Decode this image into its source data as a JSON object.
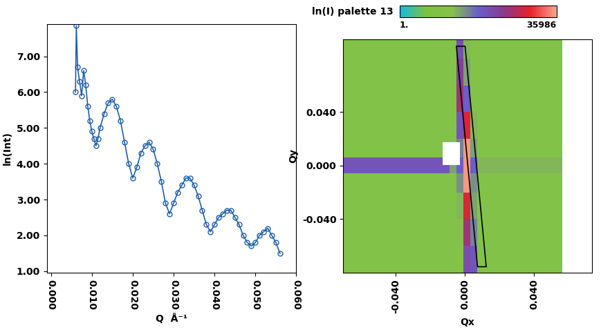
{
  "chart_data": [
    {
      "type": "scatter",
      "xlabel": "Q  Å⁻¹",
      "ylabel": "ln(Int)",
      "marker": "o",
      "line_style": "solid",
      "color": "#1f5fa8",
      "x": [
        0.006,
        0.0062,
        0.0065,
        0.007,
        0.0075,
        0.008,
        0.0085,
        0.009,
        0.0095,
        0.01,
        0.0105,
        0.011,
        0.0115,
        0.012,
        0.013,
        0.014,
        0.015,
        0.016,
        0.017,
        0.018,
        0.019,
        0.02,
        0.021,
        0.022,
        0.023,
        0.024,
        0.025,
        0.026,
        0.027,
        0.028,
        0.029,
        0.03,
        0.031,
        0.032,
        0.033,
        0.034,
        0.035,
        0.036,
        0.037,
        0.038,
        0.039,
        0.04,
        0.041,
        0.042,
        0.043,
        0.044,
        0.045,
        0.046,
        0.047,
        0.048,
        0.049,
        0.05,
        0.051,
        0.052,
        0.053,
        0.054,
        0.055,
        0.056
      ],
      "values": [
        6.0,
        7.85,
        6.7,
        6.3,
        5.9,
        6.6,
        6.2,
        5.6,
        5.2,
        4.9,
        4.7,
        4.5,
        4.7,
        5.0,
        5.4,
        5.7,
        5.8,
        5.6,
        5.2,
        4.6,
        4.0,
        3.6,
        3.9,
        4.3,
        4.5,
        4.6,
        4.4,
        4.0,
        3.5,
        2.9,
        2.6,
        2.9,
        3.2,
        3.4,
        3.6,
        3.6,
        3.4,
        3.1,
        2.7,
        2.3,
        2.1,
        2.3,
        2.5,
        2.6,
        2.7,
        2.7,
        2.5,
        2.3,
        2.0,
        1.8,
        1.7,
        1.8,
        2.0,
        2.1,
        2.2,
        2.0,
        1.8,
        1.5
      ],
      "xlim": [
        -0.001,
        0.06
      ],
      "xticks": [
        {
          "value": 0.0,
          "label": "0.000"
        },
        {
          "value": 0.01,
          "label": "0.010"
        },
        {
          "value": 0.02,
          "label": "0.020"
        },
        {
          "value": 0.03,
          "label": "0.030"
        },
        {
          "value": 0.04,
          "label": "0.040"
        },
        {
          "value": 0.05,
          "label": "0.050"
        },
        {
          "value": 0.06,
          "label": "0.060"
        }
      ],
      "ylim": [
        0.96,
        7.9
      ],
      "yticks": [
        {
          "value": 1,
          "label": "1.00"
        },
        {
          "value": 2,
          "label": "2.00"
        },
        {
          "value": 3,
          "label": "3.00"
        },
        {
          "value": 4,
          "label": "4.00"
        },
        {
          "value": 5,
          "label": "5.00"
        },
        {
          "value": 6,
          "label": "6.00"
        },
        {
          "value": 7,
          "label": "7.00"
        }
      ]
    },
    {
      "type": "heatmap",
      "xlabel": "Qx",
      "ylabel": "Qy",
      "x_edges": [
        -0.0703,
        -0.009,
        -0.005,
        -0.001,
        0.003,
        0.007,
        0.0565
      ],
      "y_edges": [
        -0.08,
        -0.06,
        -0.04,
        -0.02,
        -0.006,
        0.006,
        0.02,
        0.04,
        0.06,
        0.08,
        0.0944
      ],
      "cells": [
        [
          20,
          20,
          20,
          400,
          300,
          20
        ],
        [
          20,
          20,
          20,
          1500,
          100,
          20
        ],
        [
          20,
          20,
          40,
          5000,
          60,
          20
        ],
        [
          20,
          20,
          80,
          30000,
          80,
          20
        ],
        [
          300,
          60,
          200,
          30000,
          200,
          40
        ],
        [
          20,
          20,
          100,
          30000,
          60,
          20
        ],
        [
          20,
          20,
          300,
          5000,
          40,
          20
        ],
        [
          20,
          20,
          1500,
          200,
          20,
          20
        ],
        [
          20,
          20,
          800,
          60,
          20,
          20
        ],
        [
          20,
          20,
          400,
          40,
          20,
          20
        ]
      ],
      "colors": [
        "#19b8e0",
        "#7cc242",
        "#86c24a",
        "#6a5fc8",
        "#8a3a8c",
        "#e8202a",
        "#f7a48c"
      ],
      "log": true,
      "color_label": "ln(I) palette 13",
      "color_range": [
        1,
        35986
      ],
      "color_ticks": [
        {
          "value": 1,
          "label": "1."
        },
        35986
      ],
      "xlim": [
        -0.0703,
        0.0735
      ],
      "xticks": [
        {
          "value": -0.04,
          "label": "-0.040"
        },
        {
          "value": 0.0,
          "label": "0.000"
        },
        {
          "value": 0.04,
          "label": "0.040"
        }
      ],
      "ylim": [
        -0.08,
        0.0944
      ],
      "yticks": [
        {
          "value": -0.04,
          "label": "-0.040"
        },
        {
          "value": 0.0,
          "label": "0.000"
        },
        {
          "value": 0.04,
          "label": "0.040"
        }
      ]
    }
  ]
}
